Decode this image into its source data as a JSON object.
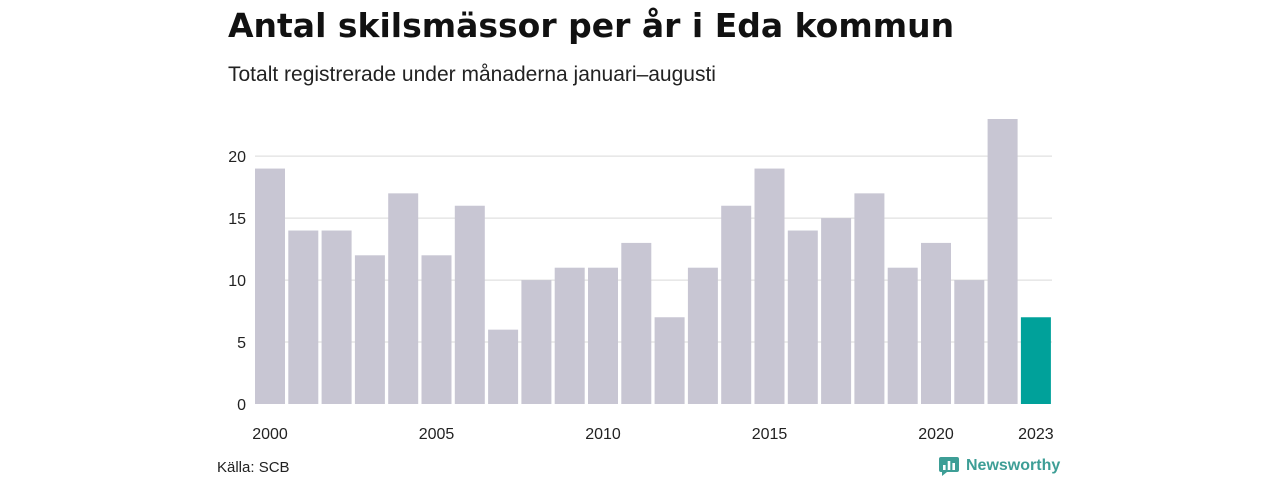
{
  "title": "Antal skilsmässor per år i Eda kommun",
  "subtitle": "Totalt registrerade under månaderna januari–augusti",
  "source": "Källa: SCB",
  "brand": {
    "label": "Newsworthy",
    "icon": "newsworthy-logo-icon",
    "color": "#3d9e96"
  },
  "colors": {
    "bar": "#c8c6d3",
    "highlight": "#00a19a",
    "grid": "#d9d9d9"
  },
  "chart_data": {
    "type": "bar",
    "categories": [
      "2000",
      "2001",
      "2002",
      "2003",
      "2004",
      "2005",
      "2006",
      "2007",
      "2008",
      "2009",
      "2010",
      "2011",
      "2012",
      "2013",
      "2014",
      "2015",
      "2016",
      "2017",
      "2018",
      "2019",
      "2020",
      "2021",
      "2022",
      "2023"
    ],
    "values": [
      19,
      14,
      14,
      12,
      17,
      12,
      16,
      6,
      10,
      11,
      11,
      13,
      7,
      11,
      16,
      19,
      14,
      15,
      17,
      11,
      13,
      10,
      23,
      7
    ],
    "highlight_category": "2023",
    "x_tick_labels": [
      "2000",
      "2005",
      "2010",
      "2015",
      "2020",
      "2023"
    ],
    "y_ticks": [
      0,
      5,
      10,
      15,
      20
    ],
    "ylim": [
      0,
      23
    ],
    "grid": true,
    "xlabel": "",
    "ylabel": ""
  }
}
